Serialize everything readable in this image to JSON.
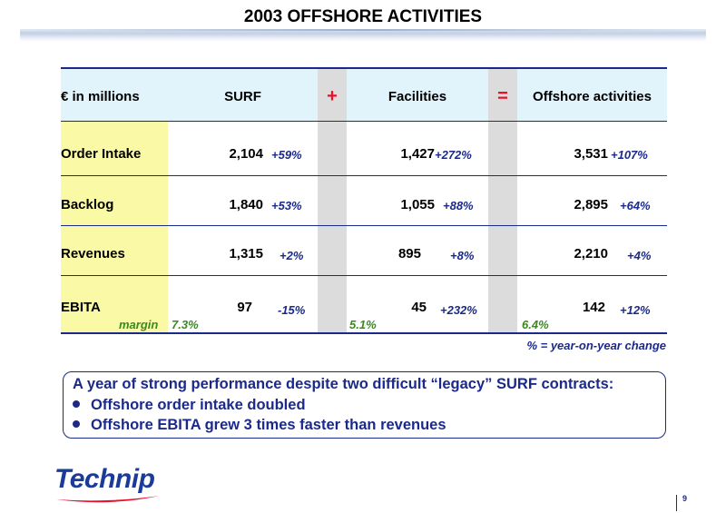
{
  "title": "2003 OFFSHORE ACTIVITIES",
  "table": {
    "unit_label": "€ in millions",
    "col_surf": "SURF",
    "op_plus": "+",
    "col_facilities": "Facilities",
    "op_equals": "=",
    "col_offshore": "Offshore activities",
    "rows": [
      {
        "label": "Order Intake",
        "surf": "2,104",
        "surf_pct": "+59%",
        "fac": "1,427",
        "fac_pct": "+272%",
        "off": "3,531",
        "off_pct": "+107%"
      },
      {
        "label": "Backlog",
        "surf": "1,840",
        "surf_pct": "+53%",
        "fac": "1,055",
        "fac_pct": "+88%",
        "off": "2,895",
        "off_pct": "+64%"
      },
      {
        "label": "Revenues",
        "surf": "1,315",
        "surf_pct": "+2%",
        "fac": "895",
        "fac_pct": "+8%",
        "off": "2,210",
        "off_pct": "+4%"
      },
      {
        "label": "EBITA",
        "surf": "97",
        "surf_pct": "-15%",
        "fac": "45",
        "fac_pct": "+232%",
        "off": "142",
        "off_pct": "+12%"
      }
    ],
    "margin_label": "margin",
    "margin_surf": "7.3%",
    "margin_fac": "5.1%",
    "margin_off": "6.4%"
  },
  "footnote": "% = year-on-year change",
  "summary": {
    "title": "A year of strong performance despite two difficult “legacy” SURF contracts:",
    "bullets": [
      "Offshore order intake doubled",
      "Offshore EBITA grew 3 times faster than revenues"
    ]
  },
  "logo_text": "Technip",
  "page_number": "9",
  "colors": {
    "navy": "#1b2a8a",
    "red": "#e8102a",
    "yellow": "#fafaa6",
    "light_blue": "#e1f3fb",
    "green": "#3a8a1e"
  }
}
